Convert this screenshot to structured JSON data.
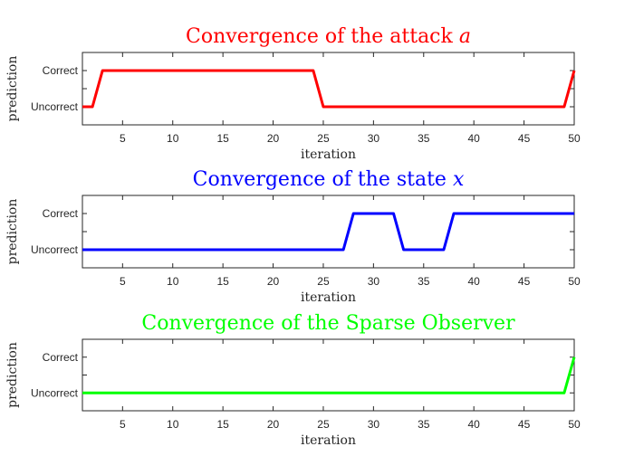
{
  "chart_data": [
    {
      "type": "line",
      "title": "Convergence of the attack a",
      "title_color": "#ff0000",
      "xlabel": "iteration",
      "ylabel": "prediction",
      "xlim": [
        1,
        50
      ],
      "ylim": [
        -0.5,
        1.5
      ],
      "xticks": [
        "5",
        "10",
        "15",
        "20",
        "25",
        "30",
        "35",
        "40",
        "45",
        "50"
      ],
      "yticks": [
        "Uncorrect",
        "Correct"
      ],
      "series": [
        {
          "color": "#ff0000",
          "x": [
            1,
            2,
            3,
            24,
            25,
            49,
            50
          ],
          "y": [
            0,
            0,
            1,
            1,
            0,
            0,
            1
          ]
        }
      ]
    },
    {
      "type": "line",
      "title": "Convergence of the state x",
      "title_color": "#0000ff",
      "xlabel": "iteration",
      "ylabel": "prediction",
      "xlim": [
        1,
        50
      ],
      "ylim": [
        -0.5,
        1.5
      ],
      "xticks": [
        "5",
        "10",
        "15",
        "20",
        "25",
        "30",
        "35",
        "40",
        "45",
        "50"
      ],
      "yticks": [
        "Uncorrect",
        "Correct"
      ],
      "series": [
        {
          "color": "#0000ff",
          "x": [
            1,
            27,
            28,
            32,
            33,
            37,
            38,
            50
          ],
          "y": [
            0,
            0,
            1,
            1,
            0,
            0,
            1,
            1
          ]
        }
      ]
    },
    {
      "type": "line",
      "title": "Convergence of the Sparse Observer",
      "title_color": "#00ff00",
      "xlabel": "iteration",
      "ylabel": "prediction",
      "xlim": [
        1,
        50
      ],
      "ylim": [
        -0.5,
        1.5
      ],
      "xticks": [
        "5",
        "10",
        "15",
        "20",
        "25",
        "30",
        "35",
        "40",
        "45",
        "50"
      ],
      "yticks": [
        "Uncorrect",
        "Correct"
      ],
      "series": [
        {
          "color": "#00ff00",
          "x": [
            1,
            49,
            50
          ],
          "y": [
            0,
            0,
            1
          ]
        }
      ]
    }
  ]
}
